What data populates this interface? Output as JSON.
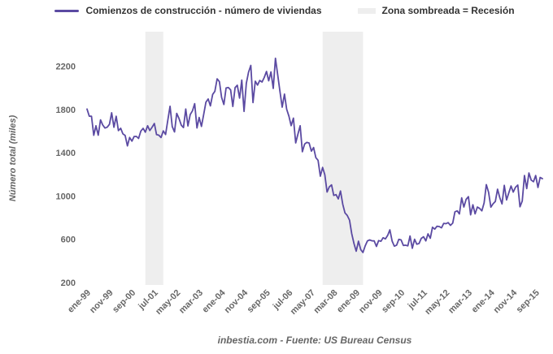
{
  "legend": {
    "series_label": "Comienzos de construcción - número de viviendas",
    "band_label": "Zona sombreada = Recesión"
  },
  "y_axis": {
    "title": "Número total (miles)"
  },
  "footer": {
    "credit": "inbestia.com - Fuente: US Bureau Census"
  },
  "colors": {
    "line": "#5b4aa2",
    "band": "#eeeeee",
    "tick_text": "#666666",
    "legend_text": "#333333"
  },
  "chart_data": {
    "type": "line",
    "title": "Comienzos de construcción - número de viviendas",
    "ylabel": "Número total (miles)",
    "x_frequency": "monthly",
    "x_start": "ene-99",
    "x_end": "dic-15",
    "x_tick_labels": [
      "ene-99",
      "nov-99",
      "sep-00",
      "jul-01",
      "may-02",
      "mar-03",
      "ene-04",
      "nov-04",
      "sep-05",
      "jul-06",
      "may-07",
      "mar-08",
      "ene-09",
      "nov-09",
      "sep-10",
      "jul-11",
      "may-12",
      "mar-13",
      "ene-14",
      "nov-14",
      "sep-15"
    ],
    "x_tick_indices": [
      0,
      10,
      20,
      30,
      40,
      50,
      60,
      70,
      80,
      90,
      100,
      110,
      120,
      130,
      140,
      150,
      160,
      170,
      180,
      190,
      200
    ],
    "y_ticks": [
      2200,
      1800,
      1400,
      1000,
      600,
      200
    ],
    "ylim": [
      160,
      2520
    ],
    "grid": false,
    "legend_position": "top",
    "recession_bands": [
      {
        "start_index": 26,
        "end_index": 34
      },
      {
        "start_index": 105,
        "end_index": 123
      }
    ],
    "values": [
      1804,
      1738,
      1737,
      1561,
      1649,
      1562,
      1704,
      1657,
      1628,
      1636,
      1663,
      1769,
      1636,
      1737,
      1604,
      1626,
      1575,
      1559,
      1463,
      1541,
      1507,
      1549,
      1551,
      1532,
      1600,
      1625,
      1590,
      1649,
      1605,
      1636,
      1670,
      1567,
      1562,
      1540,
      1602,
      1568,
      1698,
      1829,
      1642,
      1592,
      1764,
      1717,
      1655,
      1633,
      1804,
      1648,
      1753,
      1788,
      1853,
      1629,
      1726,
      1643,
      1751,
      1867,
      1897,
      1833,
      1939,
      1967,
      2083,
      2057,
      1911,
      1846,
      1998,
      2003,
      1981,
      1828,
      2002,
      2024,
      1905,
      2072,
      1782,
      2042,
      2144,
      2207,
      1864,
      2061,
      2025,
      2068,
      2054,
      2095,
      2151,
      2065,
      2147,
      1994,
      2273,
      2119,
      1969,
      1821,
      1942,
      1802,
      1737,
      1650,
      1720,
      1491,
      1570,
      1649,
      1409,
      1480,
      1495,
      1490,
      1415,
      1448,
      1354,
      1330,
      1183,
      1264,
      1197,
      1037,
      1084,
      1103,
      1005,
      1013,
      973,
      1046,
      923,
      844,
      820,
      777,
      652,
      560,
      490,
      582,
      505,
      478,
      540,
      585,
      594,
      586,
      585,
      534,
      588,
      581,
      614,
      604,
      636,
      687,
      583,
      536,
      546,
      599,
      594,
      543,
      545,
      539,
      630,
      517,
      600,
      554,
      561,
      608,
      623,
      585,
      650,
      610,
      711,
      694,
      720,
      718,
      706,
      747,
      744,
      754,
      728,
      749,
      854,
      863,
      834,
      983,
      898,
      969,
      994,
      826,
      919,
      835,
      898,
      885,
      863,
      936,
      1105,
      1034,
      897,
      928,
      950,
      1063,
      984,
      927,
      1098,
      964,
      1028,
      1092,
      1036,
      1081,
      1101,
      900,
      954,
      1190,
      1069,
      1213,
      1147,
      1132,
      1189,
      1079,
      1171,
      1160
    ]
  }
}
